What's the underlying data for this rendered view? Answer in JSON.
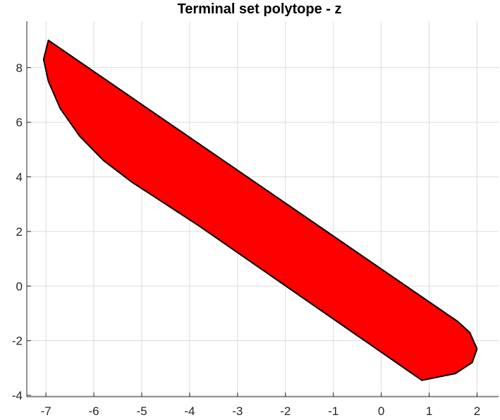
{
  "chart_data": {
    "type": "area",
    "title": "Terminal set polytope - z",
    "xlabel": "",
    "ylabel": "",
    "xlim": [
      -7.4,
      2.45
    ],
    "ylim": [
      -4.05,
      9.7
    ],
    "xticks": [
      -7,
      -6,
      -5,
      -4,
      -3,
      -2,
      -1,
      0,
      1,
      2
    ],
    "yticks": [
      -4,
      -2,
      0,
      2,
      4,
      6,
      8
    ],
    "grid": true,
    "fill_color": "#ff0000",
    "edge_color": "#000000",
    "polygon": [
      {
        "x": -6.95,
        "y": 9.0
      },
      {
        "x": 1.35,
        "y": -1.0
      },
      {
        "x": 1.6,
        "y": -1.3
      },
      {
        "x": 1.85,
        "y": -1.7
      },
      {
        "x": 2.0,
        "y": -2.3
      },
      {
        "x": 1.9,
        "y": -2.8
      },
      {
        "x": 1.55,
        "y": -3.2
      },
      {
        "x": 0.85,
        "y": -3.45
      },
      {
        "x": -3.8,
        "y": 2.2
      },
      {
        "x": -4.5,
        "y": 3.0
      },
      {
        "x": -5.2,
        "y": 3.8
      },
      {
        "x": -5.8,
        "y": 4.6
      },
      {
        "x": -6.3,
        "y": 5.5
      },
      {
        "x": -6.7,
        "y": 6.5
      },
      {
        "x": -6.95,
        "y": 7.5
      },
      {
        "x": -7.05,
        "y": 8.3
      }
    ]
  }
}
